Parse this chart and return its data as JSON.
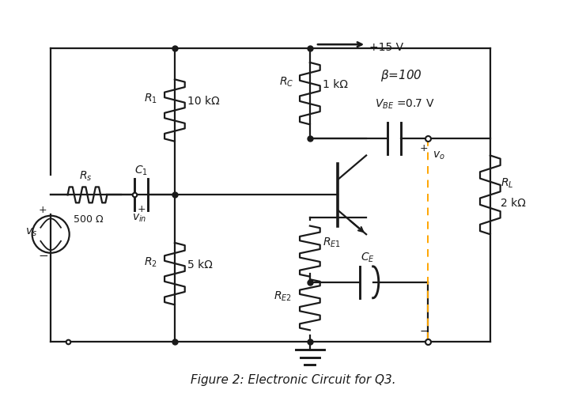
{
  "title": "Figure 2: Electronic Circuit for Q3.",
  "title_fontsize": 11,
  "bg_color": "#ffffff",
  "line_color": "#1a1a1a",
  "line_width": 1.6,
  "dot_size": 5,
  "dashed_color": "#FFA500",
  "supply_label": "+15 V",
  "beta_label": "β=100",
  "vbe_label": "V_{BE} =0.7 V",
  "rc_val": "1 kΩ",
  "r1_val": "10 kΩ",
  "r2_val": "5 kΩ",
  "rs_val": "500 Ω",
  "rl_val": "2 kΩ"
}
